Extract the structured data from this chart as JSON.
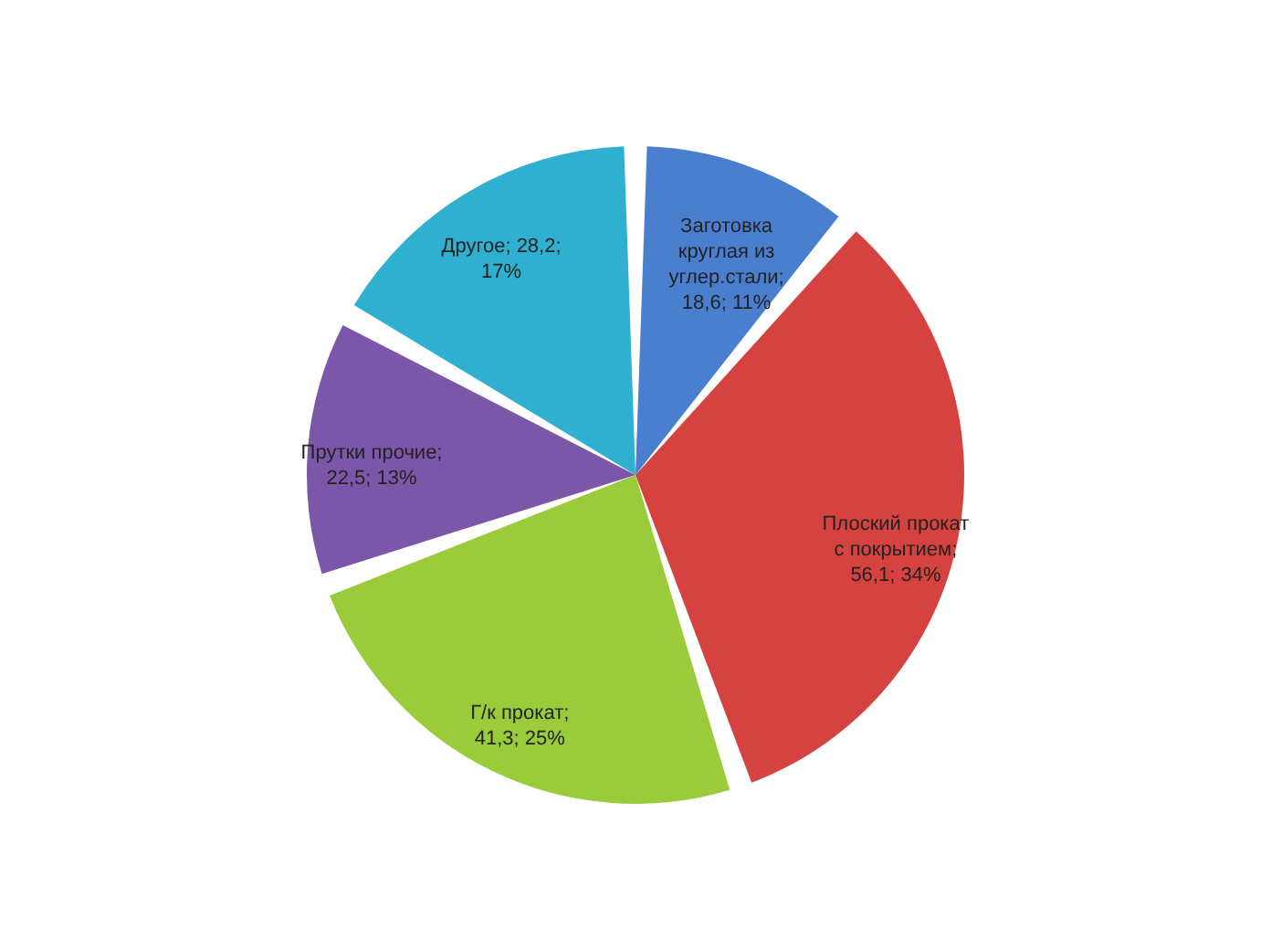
{
  "chart_data": {
    "type": "pie",
    "categories": [
      "Заготовка круглая из углер.стали",
      "Плоский прокат с покрытием",
      "Г/к прокат",
      "Прутки прочие",
      "Другое"
    ],
    "values": [
      18.6,
      56.1,
      41.3,
      22.5,
      28.2
    ],
    "colors": [
      "#4a7fd0",
      "#d5423f",
      "#9acb3b",
      "#7c56a8",
      "#2fb0d0"
    ],
    "value_labels": [
      "; 18,6; 11%",
      "; 56,1; 34%",
      "; 41,3; 25%",
      "; 22,5; 13%",
      "; 28,2; 17%"
    ],
    "legend": false
  }
}
